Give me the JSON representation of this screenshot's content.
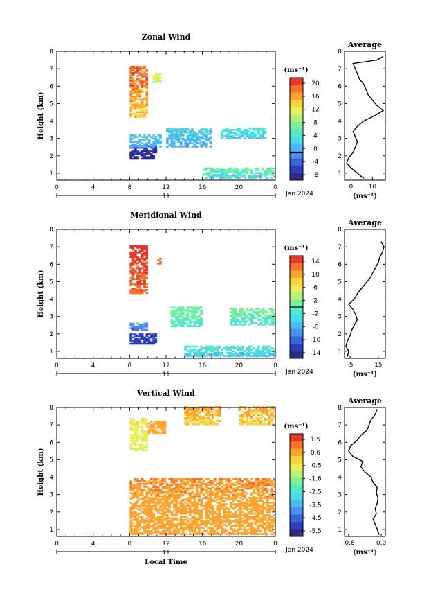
{
  "colors": {
    "scale": [
      "#2d2c83",
      "#2f3eb8",
      "#3a63d6",
      "#4b8ff0",
      "#4cb7f0",
      "#4cd9e6",
      "#56e8c8",
      "#7cf09c",
      "#b6f27a",
      "#e9ef5a",
      "#fbd43c",
      "#fca52f",
      "#f8712d",
      "#e33a2a"
    ],
    "line": "#000000"
  },
  "month_label": "Jan 2024",
  "xlabel_bottom": "Local Time",
  "chart_data": [
    {
      "type": "heatmap",
      "title": "Zonal Wind",
      "ylabel": "Height (km)",
      "xlim": [
        0,
        24
      ],
      "ylim": [
        0.6,
        8
      ],
      "xticks": [
        "0",
        "4",
        "8",
        "12",
        "16",
        "20",
        "0"
      ],
      "yticks": [
        "1",
        "2",
        "3",
        "4",
        "5",
        "6",
        "7",
        "8"
      ],
      "day_label": "11",
      "colorbar": {
        "unit": "(ms⁻¹)",
        "min": -8,
        "max": 22,
        "labels": [
          "20",
          "16",
          "12",
          "8",
          "4",
          "0",
          "-4",
          "-8"
        ],
        "zero_line": 0
      },
      "regions": [
        {
          "x": [
            8,
            10
          ],
          "y": [
            4.2,
            7.1
          ],
          "v": [
            12,
            22
          ]
        },
        {
          "x": [
            10.5,
            11.5
          ],
          "y": [
            6.2,
            6.7
          ],
          "v": [
            10,
            14
          ]
        },
        {
          "x": [
            8,
            11
          ],
          "y": [
            1.8,
            2.6
          ],
          "v": [
            -8,
            -4
          ]
        },
        {
          "x": [
            8,
            11.5
          ],
          "y": [
            2.5,
            3.2
          ],
          "v": [
            0,
            4
          ]
        },
        {
          "x": [
            12,
            17
          ],
          "y": [
            2.5,
            3.5
          ],
          "v": [
            0,
            4
          ]
        },
        {
          "x": [
            16,
            24
          ],
          "y": [
            0.7,
            1.3
          ],
          "v": [
            2,
            10
          ]
        },
        {
          "x": [
            18,
            23
          ],
          "y": [
            3.0,
            3.6
          ],
          "v": [
            2,
            6
          ]
        }
      ],
      "profile": {
        "title": "Average",
        "xlim": [
          -3,
          16
        ],
        "xticks": [
          "0",
          "10"
        ],
        "xlabel": "(ms⁻¹)",
        "heights": [
          0.7,
          1.0,
          1.3,
          1.6,
          1.9,
          2.2,
          2.5,
          2.8,
          3.1,
          3.4,
          3.7,
          4.0,
          4.3,
          4.6,
          4.9,
          5.2,
          5.5,
          5.8,
          6.1,
          6.4,
          6.7,
          7.0,
          7.3,
          7.5,
          7.7
        ],
        "values": [
          6,
          3,
          0,
          -2,
          -1,
          1,
          2,
          3,
          2,
          1,
          3,
          6,
          11,
          15,
          12,
          10,
          8,
          7,
          6,
          4,
          3,
          2,
          1,
          12,
          15
        ]
      }
    },
    {
      "type": "heatmap",
      "title": "Meridional Wind",
      "ylabel": "Height (km)",
      "xlim": [
        0,
        24
      ],
      "ylim": [
        0.6,
        8
      ],
      "xticks": [
        "0",
        "4",
        "8",
        "12",
        "16",
        "20",
        "0"
      ],
      "yticks": [
        "1",
        "2",
        "3",
        "4",
        "5",
        "6",
        "7",
        "8"
      ],
      "day_label": "11",
      "colorbar": {
        "unit": "(ms⁻¹)",
        "min": -16,
        "max": 16,
        "labels": [
          "14",
          "10",
          "6",
          "2",
          "-2",
          "-6",
          "-10",
          "-14"
        ],
        "zero_line": 0
      },
      "regions": [
        {
          "x": [
            8,
            10
          ],
          "y": [
            4.3,
            7.0
          ],
          "v": [
            12,
            16
          ]
        },
        {
          "x": [
            11,
            11.5
          ],
          "y": [
            6.0,
            6.3
          ],
          "v": [
            12,
            14
          ]
        },
        {
          "x": [
            8,
            11
          ],
          "y": [
            1.4,
            2.0
          ],
          "v": [
            -14,
            -10
          ]
        },
        {
          "x": [
            8,
            10
          ],
          "y": [
            2.2,
            2.6
          ],
          "v": [
            -10,
            -6
          ]
        },
        {
          "x": [
            12.5,
            16
          ],
          "y": [
            2.4,
            3.5
          ],
          "v": [
            -2,
            2
          ]
        },
        {
          "x": [
            19,
            24
          ],
          "y": [
            2.5,
            3.4
          ],
          "v": [
            -2,
            2
          ]
        },
        {
          "x": [
            14,
            24
          ],
          "y": [
            0.7,
            1.3
          ],
          "v": [
            -6,
            0
          ]
        }
      ],
      "profile": {
        "title": "Average",
        "xlim": [
          -9,
          20
        ],
        "xticks": [
          "-5",
          "15"
        ],
        "xlabel": "(ms⁻¹)",
        "heights": [
          0.7,
          1.0,
          1.3,
          1.6,
          1.9,
          2.2,
          2.5,
          2.8,
          3.1,
          3.4,
          3.7,
          4.0,
          4.3,
          4.6,
          4.9,
          5.2,
          5.5,
          5.8,
          6.1,
          6.4,
          6.7,
          7.0,
          7.3
        ],
        "values": [
          -7,
          -6,
          -8,
          -7,
          -5,
          -4,
          -2,
          0,
          -1,
          -3,
          -6,
          -2,
          0,
          3,
          6,
          9,
          11,
          13,
          15,
          16,
          18,
          19,
          17
        ]
      }
    },
    {
      "type": "heatmap",
      "title": "Vertical Wind",
      "ylabel": "Height (km)",
      "xlim": [
        0,
        24
      ],
      "ylim": [
        0.6,
        8
      ],
      "xticks": [
        "0",
        "4",
        "8",
        "12",
        "16",
        "20",
        "0"
      ],
      "yticks": [
        "1",
        "2",
        "3",
        "4",
        "5",
        "6",
        "7",
        "8"
      ],
      "day_label": "11",
      "xlabel": "Local Time",
      "colorbar": {
        "unit": "(ms⁻¹)",
        "min": -6.0,
        "max": 2.0,
        "labels": [
          "1.5",
          "0.6",
          "-0.5",
          "-1.6",
          "-2.5",
          "-3.5",
          "-4.5",
          "-5.5"
        ]
      },
      "regions": [
        {
          "x": [
            8,
            10
          ],
          "y": [
            5.5,
            7.3
          ],
          "v": [
            -1.0,
            0.0
          ]
        },
        {
          "x": [
            8,
            24
          ],
          "y": [
            0.7,
            3.9
          ],
          "v": [
            0.3,
            1.0
          ]
        },
        {
          "x": [
            10,
            12
          ],
          "y": [
            6.5,
            7.2
          ],
          "v": [
            0.2,
            0.8
          ]
        },
        {
          "x": [
            14,
            18
          ],
          "y": [
            7.0,
            8.0
          ],
          "v": [
            0.0,
            0.6
          ]
        },
        {
          "x": [
            20,
            24
          ],
          "y": [
            7.0,
            8.0
          ],
          "v": [
            0.0,
            0.6
          ]
        }
      ],
      "profile": {
        "title": "Average",
        "xlim": [
          -0.9,
          0.1
        ],
        "xticks": [
          "-0.8",
          "0.0"
        ],
        "xlabel": "(ms⁻¹)",
        "heights": [
          0.7,
          1.0,
          1.3,
          1.6,
          1.9,
          2.2,
          2.5,
          2.8,
          3.1,
          3.4,
          3.7,
          4.0,
          4.3,
          4.6,
          4.9,
          5.2,
          5.5,
          5.8,
          6.1,
          6.4,
          6.7,
          7.0,
          7.3,
          7.6,
          7.9
        ],
        "values": [
          -0.05,
          -0.1,
          -0.15,
          -0.2,
          -0.12,
          -0.15,
          -0.1,
          -0.08,
          -0.12,
          -0.1,
          -0.2,
          -0.25,
          -0.4,
          -0.5,
          -0.45,
          -0.7,
          -0.8,
          -0.75,
          -0.6,
          -0.5,
          -0.35,
          -0.3,
          -0.25,
          -0.15,
          -0.1
        ]
      }
    }
  ]
}
